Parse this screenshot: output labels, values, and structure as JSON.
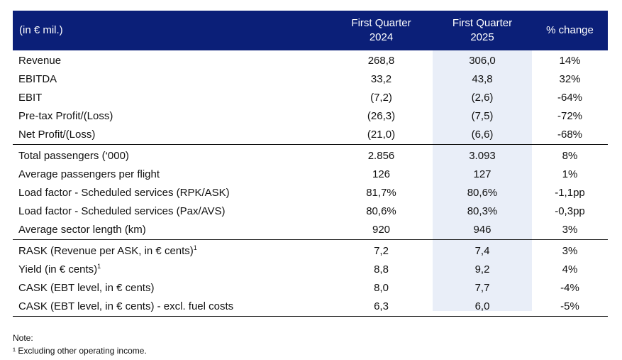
{
  "table": {
    "header": {
      "label": "(in € mil.)",
      "col1_line1": "First Quarter",
      "col1_line2": "2024",
      "col2_line1": "First Quarter",
      "col2_line2": "2025",
      "col3": "% change"
    },
    "sections": [
      [
        {
          "label": "Revenue",
          "q2024": "268,8",
          "q2025": "306,0",
          "change": "14%"
        },
        {
          "label": "EBITDA",
          "q2024": "33,2",
          "q2025": "43,8",
          "change": "32%"
        },
        {
          "label": "EBIT",
          "q2024": "(7,2)",
          "q2025": "(2,6)",
          "change": "-64%"
        },
        {
          "label": "Pre-tax Profit/(Loss)",
          "q2024": "(26,3)",
          "q2025": "(7,5)",
          "change": "-72%"
        },
        {
          "label": "Net Profit/(Loss)",
          "q2024": "(21,0)",
          "q2025": "(6,6)",
          "change": "-68%"
        }
      ],
      [
        {
          "label": "Total passengers (‘000)",
          "q2024": "2.856",
          "q2025": "3.093",
          "change": "8%"
        },
        {
          "label": "Average passengers per flight",
          "q2024": "126",
          "q2025": "127",
          "change": "1%"
        },
        {
          "label": "Load factor - Scheduled services (RPK/ASK)",
          "q2024": "81,7%",
          "q2025": "80,6%",
          "change": "-1,1pp"
        },
        {
          "label": "Load factor - Scheduled services (Pax/AVS)",
          "q2024": "80,6%",
          "q2025": "80,3%",
          "change": "-0,3pp"
        },
        {
          "label": "Average sector length (km)",
          "q2024": "920",
          "q2025": "946",
          "change": "3%"
        }
      ],
      [
        {
          "label": "RASK (Revenue per ASK, in € cents)",
          "sup": "1",
          "q2024": "7,2",
          "q2025": "7,4",
          "change": "3%"
        },
        {
          "label": "Yield (in € cents)",
          "sup": "1",
          "q2024": "8,8",
          "q2025": "9,2",
          "change": "4%"
        },
        {
          "label": "CASK (EBT level, in € cents)",
          "q2024": "8,0",
          "q2025": "7,7",
          "change": "-4%"
        },
        {
          "label": "CASK (EBT level, in € cents) - excl. fuel costs",
          "q2024": "6,3",
          "q2025": "6,0",
          "change": "-5%"
        }
      ]
    ]
  },
  "notes": {
    "title": "Note:",
    "footnote": "¹ Excluding other operating income."
  }
}
